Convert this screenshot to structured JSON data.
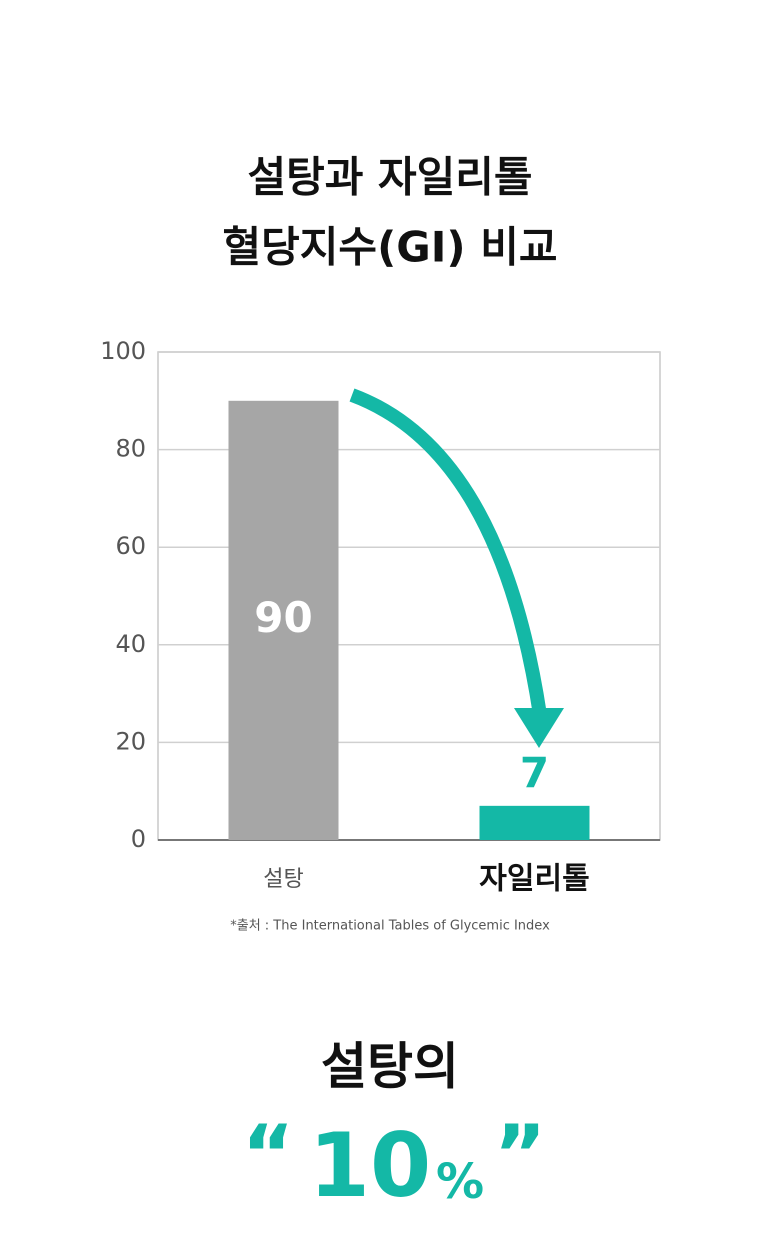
{
  "chart_data": {
    "type": "bar",
    "title": "설탕과 자일리톨",
    "subtitle": "혈당지수(GI) 비교",
    "categories": [
      "설탕",
      "자일리톨"
    ],
    "values": [
      90,
      7
    ],
    "colors": [
      "#a6a6a6",
      "#14b8a6"
    ],
    "ylim": [
      0,
      100
    ],
    "yticks": [
      0,
      20,
      40,
      60,
      80,
      100
    ],
    "grid": true,
    "source": "*출처 : The International Tables of Glycemic Index"
  },
  "caption": {
    "line1": "설탕의",
    "open_quote": "“",
    "number": "10",
    "unit": "%",
    "close_quote": "”"
  }
}
